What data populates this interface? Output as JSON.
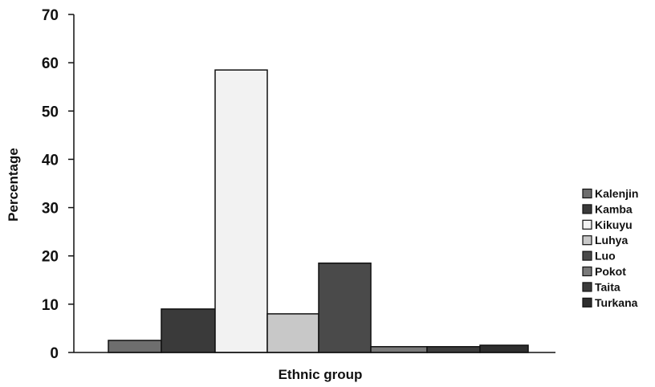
{
  "chart_data": {
    "type": "bar",
    "title": "",
    "xlabel": "Ethnic group",
    "ylabel": "Percentage",
    "ylim": [
      0,
      70
    ],
    "yticks": [
      0,
      10,
      20,
      30,
      40,
      50,
      60,
      70
    ],
    "legend_position": "right",
    "grid": false,
    "series": [
      {
        "name": "Kalenjin",
        "value": 2.5,
        "color": "#6e6e6e"
      },
      {
        "name": "Kamba",
        "value": 9,
        "color": "#3a3a3a"
      },
      {
        "name": "Kikuyu",
        "value": 58.5,
        "color": "#f2f2f2"
      },
      {
        "name": "Luhya",
        "value": 8,
        "color": "#c8c8c8"
      },
      {
        "name": "Luo",
        "value": 18.5,
        "color": "#4a4a4a"
      },
      {
        "name": "Pokot",
        "value": 1.2,
        "color": "#7a7a7a"
      },
      {
        "name": "Taita",
        "value": 1.2,
        "color": "#3c3c3c"
      },
      {
        "name": "Turkana",
        "value": 1.5,
        "color": "#2e2e2e"
      }
    ]
  }
}
